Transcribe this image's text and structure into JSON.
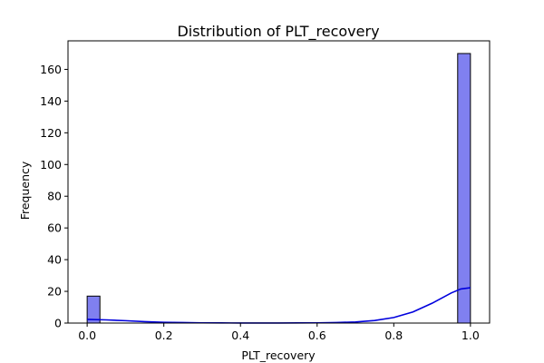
{
  "chart_data": {
    "type": "histogram",
    "title": "Distribution of PLT_recovery",
    "xlabel": "PLT_recovery",
    "ylabel": "Frequency",
    "xlim": [
      -0.05,
      1.05
    ],
    "ylim": [
      0,
      178
    ],
    "x_ticks": [
      0.0,
      0.2,
      0.4,
      0.6,
      0.8,
      1.0
    ],
    "x_tick_labels": [
      "0.0",
      "0.2",
      "0.4",
      "0.6",
      "0.8",
      "1.0"
    ],
    "y_ticks": [
      0,
      20,
      40,
      60,
      80,
      100,
      120,
      140,
      160
    ],
    "y_tick_labels": [
      "0",
      "20",
      "40",
      "60",
      "80",
      "100",
      "120",
      "140",
      "160"
    ],
    "bins": [
      {
        "x0": 0.0,
        "x1": 0.0333,
        "count": 17
      },
      {
        "x0": 0.9667,
        "x1": 1.0,
        "count": 170
      }
    ],
    "kde": [
      [
        0.0,
        2.3
      ],
      [
        0.05,
        2.0
      ],
      [
        0.1,
        1.5
      ],
      [
        0.15,
        0.9
      ],
      [
        0.2,
        0.5
      ],
      [
        0.25,
        0.3
      ],
      [
        0.3,
        0.15
      ],
      [
        0.35,
        0.08
      ],
      [
        0.4,
        0.05
      ],
      [
        0.45,
        0.05
      ],
      [
        0.5,
        0.05
      ],
      [
        0.55,
        0.08
      ],
      [
        0.6,
        0.15
      ],
      [
        0.65,
        0.3
      ],
      [
        0.7,
        0.7
      ],
      [
        0.75,
        1.6
      ],
      [
        0.8,
        3.5
      ],
      [
        0.85,
        7.0
      ],
      [
        0.9,
        12.5
      ],
      [
        0.95,
        19.0
      ],
      [
        0.975,
        21.5
      ],
      [
        1.0,
        22.3
      ]
    ],
    "grid": false,
    "colors": {
      "bar_fill": "#8080f0",
      "bar_edge": "#000000",
      "kde_line": "#0000dd"
    }
  }
}
